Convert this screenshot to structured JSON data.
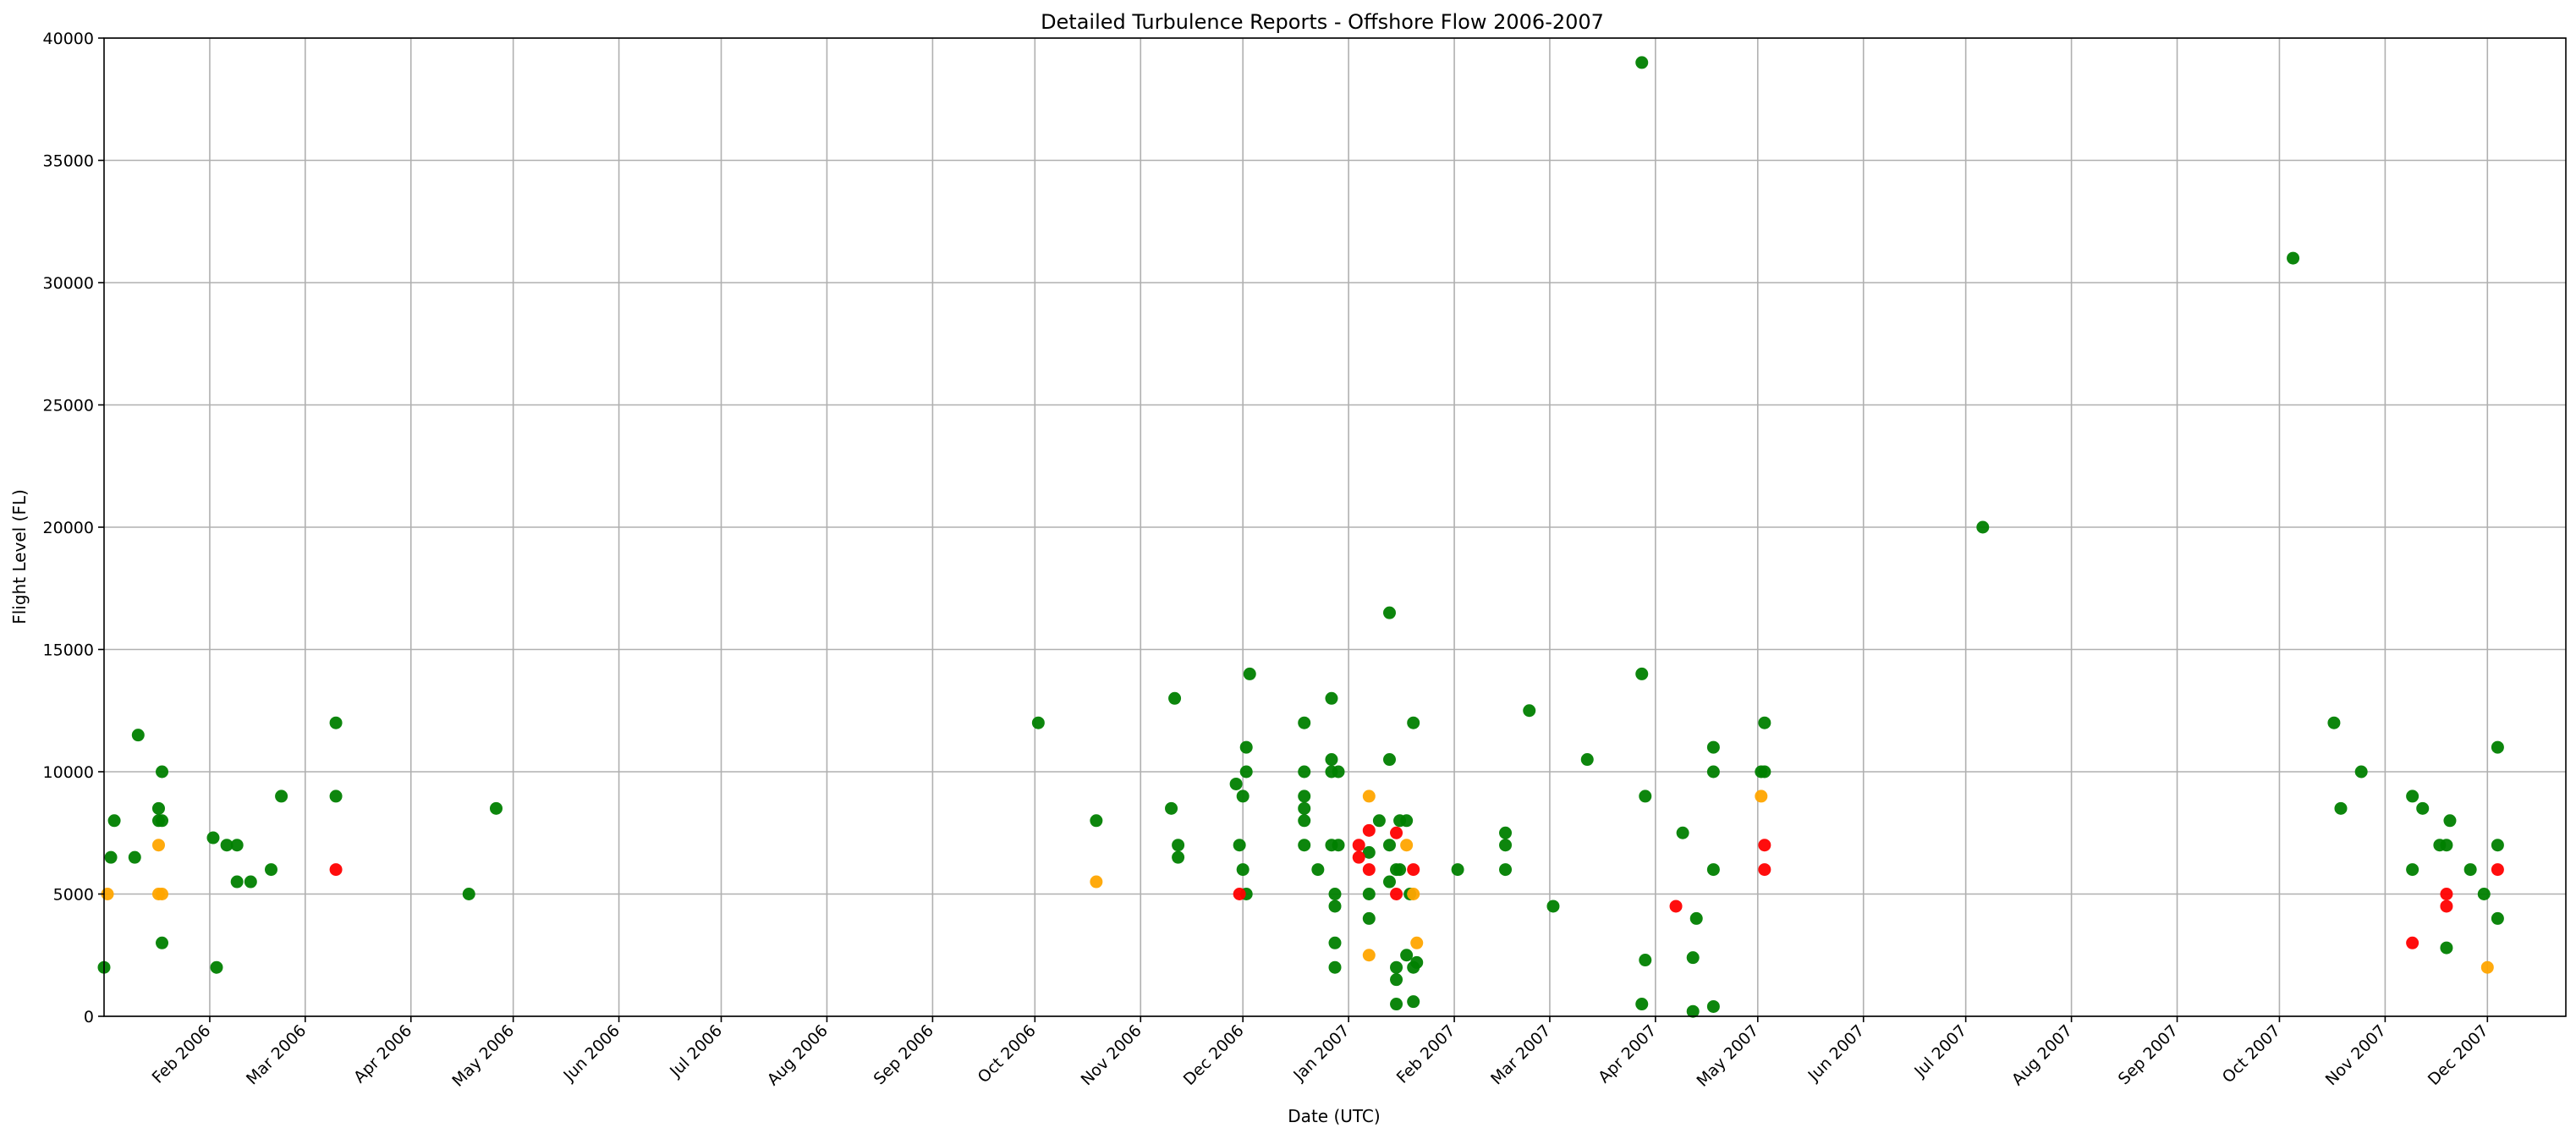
{
  "chart_data": {
    "type": "scatter",
    "title": "Detailed Turbulence Reports - Offshore Flow 2006-2007",
    "xlabel": "Date (UTC)",
    "ylabel": "Flight Level (FL)",
    "xlim": [
      "2006-01-01",
      "2007-12-24"
    ],
    "ylim": [
      0,
      40000
    ],
    "yticks": [
      0,
      5000,
      10000,
      15000,
      20000,
      25000,
      30000,
      35000,
      40000
    ],
    "xticks": [
      {
        "date": "2006-02-01",
        "label": "Feb 2006"
      },
      {
        "date": "2006-03-01",
        "label": "Mar 2006"
      },
      {
        "date": "2006-04-01",
        "label": "Apr 2006"
      },
      {
        "date": "2006-05-01",
        "label": "May 2006"
      },
      {
        "date": "2006-06-01",
        "label": "Jun 2006"
      },
      {
        "date": "2006-07-01",
        "label": "Jul 2006"
      },
      {
        "date": "2006-08-01",
        "label": "Aug 2006"
      },
      {
        "date": "2006-09-01",
        "label": "Sep 2006"
      },
      {
        "date": "2006-10-01",
        "label": "Oct 2006"
      },
      {
        "date": "2006-11-01",
        "label": "Nov 2006"
      },
      {
        "date": "2006-12-01",
        "label": "Dec 2006"
      },
      {
        "date": "2007-01-01",
        "label": "Jan 2007"
      },
      {
        "date": "2007-02-01",
        "label": "Feb 2007"
      },
      {
        "date": "2007-03-01",
        "label": "Mar 2007"
      },
      {
        "date": "2007-04-01",
        "label": "Apr 2007"
      },
      {
        "date": "2007-05-01",
        "label": "May 2007"
      },
      {
        "date": "2007-06-01",
        "label": "Jun 2007"
      },
      {
        "date": "2007-07-01",
        "label": "Jul 2007"
      },
      {
        "date": "2007-08-01",
        "label": "Aug 2007"
      },
      {
        "date": "2007-09-01",
        "label": "Sep 2007"
      },
      {
        "date": "2007-10-01",
        "label": "Oct 2007"
      },
      {
        "date": "2007-11-01",
        "label": "Nov 2007"
      },
      {
        "date": "2007-12-01",
        "label": "Dec 2007"
      }
    ],
    "grid": true,
    "colors": {
      "green": "#008000",
      "orange": "#ffa500",
      "red": "#ff0000"
    },
    "series": [
      {
        "color": "green",
        "points": [
          [
            "2006-01-01",
            2000
          ],
          [
            "2006-01-03",
            6500
          ],
          [
            "2006-01-04",
            8000
          ],
          [
            "2006-01-10",
            6500
          ],
          [
            "2006-01-11",
            11500
          ],
          [
            "2006-01-17",
            8500
          ],
          [
            "2006-01-17",
            8000
          ],
          [
            "2006-01-18",
            8000
          ],
          [
            "2006-01-18",
            10000
          ],
          [
            "2006-01-18",
            3000
          ],
          [
            "2006-02-02",
            7300
          ],
          [
            "2006-02-03",
            2000
          ],
          [
            "2006-02-06",
            7000
          ],
          [
            "2006-02-09",
            7000
          ],
          [
            "2006-02-09",
            5500
          ],
          [
            "2006-02-13",
            5500
          ],
          [
            "2006-02-19",
            6000
          ],
          [
            "2006-02-22",
            9000
          ],
          [
            "2006-03-10",
            12000
          ],
          [
            "2006-03-10",
            9000
          ],
          [
            "2006-04-18",
            5000
          ],
          [
            "2006-04-26",
            8500
          ],
          [
            "2006-10-02",
            12000
          ],
          [
            "2006-10-19",
            8000
          ],
          [
            "2006-11-10",
            8500
          ],
          [
            "2006-11-11",
            13000
          ],
          [
            "2006-11-12",
            7000
          ],
          [
            "2006-11-12",
            6500
          ],
          [
            "2006-11-29",
            9500
          ],
          [
            "2006-11-30",
            7000
          ],
          [
            "2006-12-01",
            9000
          ],
          [
            "2006-12-01",
            6000
          ],
          [
            "2006-12-02",
            10000
          ],
          [
            "2006-12-02",
            11000
          ],
          [
            "2006-12-02",
            5000
          ],
          [
            "2006-12-03",
            14000
          ],
          [
            "2006-12-19",
            12000
          ],
          [
            "2006-12-19",
            10000
          ],
          [
            "2006-12-19",
            9000
          ],
          [
            "2006-12-19",
            8500
          ],
          [
            "2006-12-19",
            8000
          ],
          [
            "2006-12-19",
            7000
          ],
          [
            "2006-12-23",
            6000
          ],
          [
            "2006-12-27",
            13000
          ],
          [
            "2006-12-27",
            10500
          ],
          [
            "2006-12-27",
            10000
          ],
          [
            "2006-12-27",
            7000
          ],
          [
            "2006-12-28",
            3000
          ],
          [
            "2006-12-28",
            2000
          ],
          [
            "2006-12-28",
            5000
          ],
          [
            "2006-12-28",
            4500
          ],
          [
            "2006-12-29",
            10000
          ],
          [
            "2006-12-29",
            7000
          ],
          [
            "2007-01-07",
            6700
          ],
          [
            "2007-01-07",
            5000
          ],
          [
            "2007-01-07",
            4000
          ],
          [
            "2007-01-10",
            8000
          ],
          [
            "2007-01-13",
            16500
          ],
          [
            "2007-01-13",
            10500
          ],
          [
            "2007-01-13",
            7000
          ],
          [
            "2007-01-13",
            5500
          ],
          [
            "2007-01-15",
            6000
          ],
          [
            "2007-01-15",
            2000
          ],
          [
            "2007-01-15",
            1500
          ],
          [
            "2007-01-15",
            500
          ],
          [
            "2007-01-16",
            8000
          ],
          [
            "2007-01-16",
            6000
          ],
          [
            "2007-01-18",
            8000
          ],
          [
            "2007-01-18",
            2500
          ],
          [
            "2007-01-19",
            5000
          ],
          [
            "2007-01-20",
            12000
          ],
          [
            "2007-01-20",
            2000
          ],
          [
            "2007-01-20",
            600
          ],
          [
            "2007-01-21",
            2200
          ],
          [
            "2007-02-02",
            6000
          ],
          [
            "2007-02-16",
            7500
          ],
          [
            "2007-02-16",
            7000
          ],
          [
            "2007-02-16",
            6000
          ],
          [
            "2007-02-23",
            12500
          ],
          [
            "2007-03-02",
            4500
          ],
          [
            "2007-03-12",
            10500
          ],
          [
            "2007-03-28",
            39000
          ],
          [
            "2007-03-28",
            14000
          ],
          [
            "2007-03-29",
            9000
          ],
          [
            "2007-03-29",
            2300
          ],
          [
            "2007-03-28",
            500
          ],
          [
            "2007-04-09",
            7500
          ],
          [
            "2007-04-12",
            2400
          ],
          [
            "2007-04-12",
            200
          ],
          [
            "2007-04-13",
            4000
          ],
          [
            "2007-04-18",
            11000
          ],
          [
            "2007-04-18",
            10000
          ],
          [
            "2007-04-18",
            6000
          ],
          [
            "2007-04-18",
            400
          ],
          [
            "2007-05-03",
            12000
          ],
          [
            "2007-05-02",
            10000
          ],
          [
            "2007-05-03",
            10000
          ],
          [
            "2007-07-06",
            20000
          ],
          [
            "2007-10-05",
            31000
          ],
          [
            "2007-10-17",
            12000
          ],
          [
            "2007-10-19",
            8500
          ],
          [
            "2007-10-25",
            10000
          ],
          [
            "2007-11-09",
            9000
          ],
          [
            "2007-11-09",
            6000
          ],
          [
            "2007-11-12",
            8500
          ],
          [
            "2007-11-17",
            7000
          ],
          [
            "2007-11-19",
            7000
          ],
          [
            "2007-11-19",
            2800
          ],
          [
            "2007-11-20",
            8000
          ],
          [
            "2007-11-26",
            6000
          ],
          [
            "2007-11-30",
            5000
          ],
          [
            "2007-12-04",
            7000
          ],
          [
            "2007-12-04",
            11000
          ],
          [
            "2007-12-04",
            4000
          ]
        ]
      },
      {
        "color": "orange",
        "points": [
          [
            "2006-01-02",
            5000
          ],
          [
            "2006-01-17",
            5000
          ],
          [
            "2006-01-18",
            5000
          ],
          [
            "2006-01-17",
            7000
          ],
          [
            "2006-10-19",
            5500
          ],
          [
            "2007-01-07",
            9000
          ],
          [
            "2007-01-07",
            2500
          ],
          [
            "2007-01-18",
            7000
          ],
          [
            "2007-01-20",
            5000
          ],
          [
            "2007-01-21",
            3000
          ],
          [
            "2007-05-02",
            9000
          ],
          [
            "2007-12-01",
            2000
          ]
        ]
      },
      {
        "color": "red",
        "points": [
          [
            "2006-03-10",
            6000
          ],
          [
            "2006-11-30",
            5000
          ],
          [
            "2007-01-04",
            7000
          ],
          [
            "2007-01-04",
            6500
          ],
          [
            "2007-01-07",
            7600
          ],
          [
            "2007-01-07",
            6000
          ],
          [
            "2007-01-15",
            7500
          ],
          [
            "2007-01-15",
            5000
          ],
          [
            "2007-01-20",
            6000
          ],
          [
            "2007-04-07",
            4500
          ],
          [
            "2007-05-03",
            7000
          ],
          [
            "2007-05-03",
            6000
          ],
          [
            "2007-11-09",
            3000
          ],
          [
            "2007-11-19",
            5000
          ],
          [
            "2007-11-19",
            4500
          ],
          [
            "2007-12-04",
            6000
          ]
        ]
      }
    ]
  }
}
